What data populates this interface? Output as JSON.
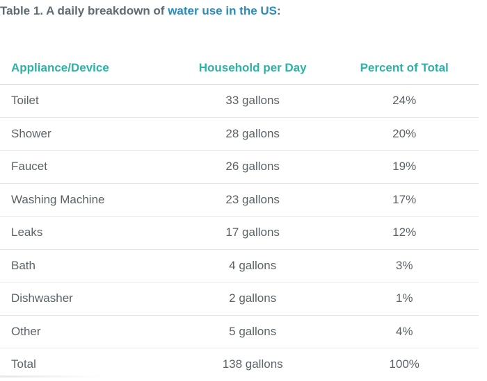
{
  "caption": {
    "prefix": "Table 1. A daily breakdown of ",
    "highlight": "water use in the US",
    "suffix": ":"
  },
  "colors": {
    "header_text": "#2bb3a6",
    "highlight": "#2a8bbd",
    "body_text": "#5b6368"
  },
  "table": {
    "headers": [
      "Appliance/Device",
      "Household per Day",
      "Percent of Total"
    ],
    "rows": [
      [
        "Toilet",
        "33 gallons",
        "24%"
      ],
      [
        "Shower",
        "28 gallons",
        "20%"
      ],
      [
        "Faucet",
        "26 gallons",
        "19%"
      ],
      [
        "Washing Machine",
        "23 gallons",
        "17%"
      ],
      [
        "Leaks",
        "17 gallons",
        "12%"
      ],
      [
        "Bath",
        "4 gallons",
        "3%"
      ],
      [
        "Dishwasher",
        "2 gallons",
        "1%"
      ],
      [
        "Other",
        "5 gallons",
        "4%"
      ],
      [
        "Total",
        "138 gallons",
        "100%"
      ]
    ]
  }
}
